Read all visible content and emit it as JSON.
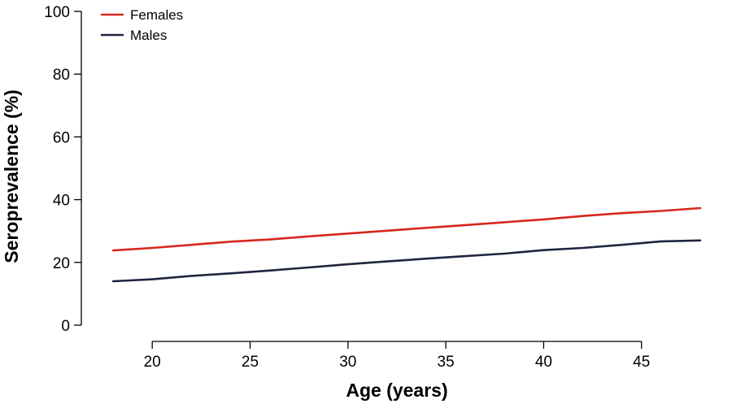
{
  "chart_data": {
    "type": "line",
    "title": "",
    "xlabel": "Age (years)",
    "ylabel": "Seroprevalence (%)",
    "xlim": [
      17,
      49
    ],
    "ylim": [
      0,
      100
    ],
    "xticks": [
      20,
      25,
      30,
      35,
      40,
      45
    ],
    "yticks": [
      0,
      20,
      40,
      60,
      80,
      100
    ],
    "grid": false,
    "legend_position": "top-left",
    "series": [
      {
        "name": "Females",
        "color": "#d7261e",
        "x": [
          18,
          20,
          22,
          24,
          26,
          28,
          30,
          32,
          34,
          36,
          38,
          40,
          42,
          44,
          46,
          48
        ],
        "y": [
          23.8,
          24.6,
          25.6,
          26.6,
          27.3,
          28.3,
          29.2,
          30.1,
          31.0,
          31.9,
          32.8,
          33.7,
          34.8,
          35.7,
          36.4,
          37.3
        ]
      },
      {
        "name": "Males",
        "color": "#1f2540",
        "x": [
          18,
          20,
          22,
          24,
          26,
          28,
          30,
          32,
          34,
          36,
          38,
          40,
          42,
          44,
          46,
          48
        ],
        "y": [
          14.0,
          14.6,
          15.7,
          16.5,
          17.4,
          18.4,
          19.4,
          20.3,
          21.2,
          22.0,
          22.8,
          23.9,
          24.6,
          25.6,
          26.7,
          27.0
        ]
      }
    ]
  }
}
